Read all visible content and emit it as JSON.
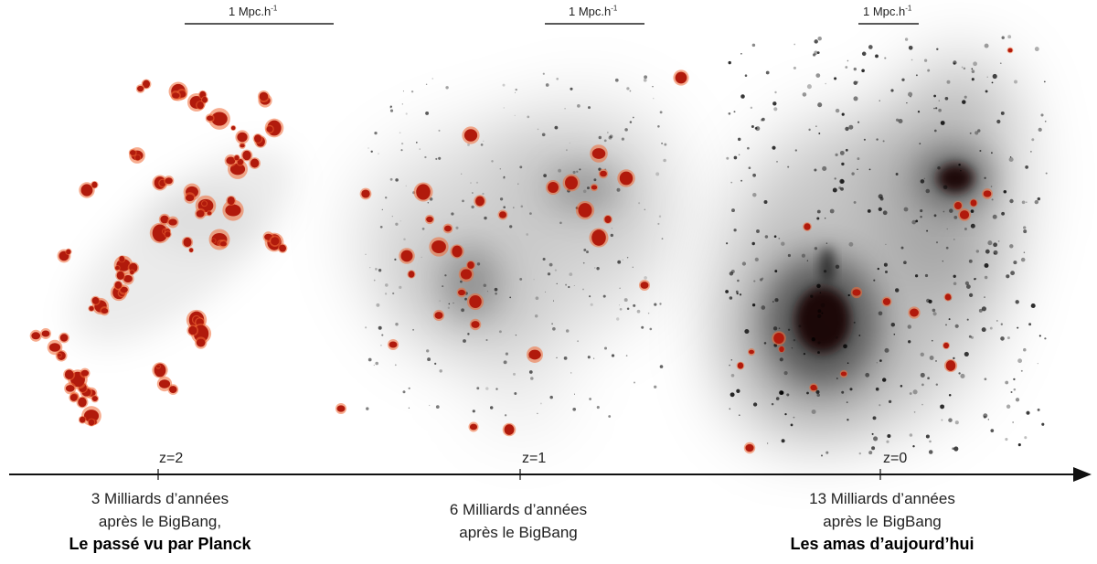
{
  "scale_bar": {
    "label": "1 Mpc.h",
    "exponent": "-1"
  },
  "colors": {
    "galaxy": "#b11a0c",
    "galaxy_glow": "#f06a35",
    "matter_dark": "#140606",
    "axis": "#111111"
  },
  "snapshots": [
    {
      "redshift": "z=2",
      "caption_line1": "3 Milliards d’années",
      "caption_line2": "après le BigBang,",
      "caption_bold": "Le passé vu par Planck"
    },
    {
      "redshift": "z=1",
      "caption_line1": "6 Milliards d’années",
      "caption_line2": "après le BigBang",
      "caption_bold": ""
    },
    {
      "redshift": "z=0",
      "caption_line1": "13 Milliards d’années",
      "caption_line2": "après le BigBang",
      "caption_bold": "Les amas d’aujourd’hui"
    }
  ]
}
